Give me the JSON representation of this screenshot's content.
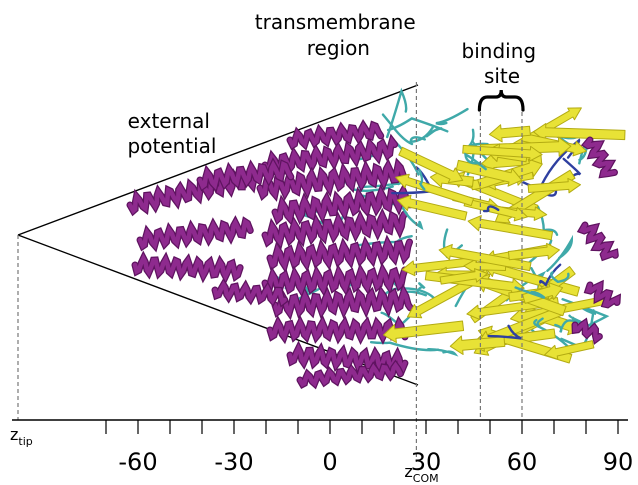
{
  "labels": {
    "external_potential": [
      "external",
      "potential"
    ],
    "transmembrane_region": [
      "transmembrane",
      "region"
    ],
    "binding_site": [
      "binding",
      "site"
    ],
    "z_tip": {
      "main": "z",
      "sub": "tip"
    },
    "z_com": {
      "main": "z",
      "sub": "COM"
    }
  },
  "axis": {
    "tick_labels": [
      {
        "value": -60,
        "text": "-60"
      },
      {
        "value": -30,
        "text": "-30"
      },
      {
        "value": 0,
        "text": "0"
      },
      {
        "value": 30,
        "text": "30"
      },
      {
        "value": 60,
        "text": "60"
      },
      {
        "value": 90,
        "text": "90"
      }
    ],
    "minor_step": 10,
    "range": [
      -70,
      90
    ],
    "markers": {
      "z_com": 27,
      "binding_start": 47,
      "binding_end": 60
    }
  },
  "colors": {
    "helix": "#8e2a8e",
    "helix_dark": "#5f1360",
    "sheet": "#e8e236",
    "sheet_dark": "#b3ab12",
    "coil": "#3fa9a9",
    "accent": "#2e3fa0"
  }
}
